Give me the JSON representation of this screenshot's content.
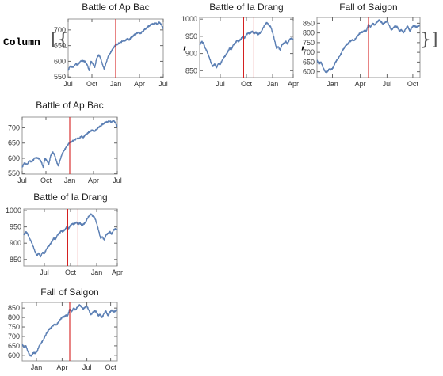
{
  "expression": {
    "head": "Column",
    "open_brackets": "[{",
    "comma": ",",
    "close_brackets": "}]"
  },
  "colors": {
    "series": "#5b7fb4",
    "marker": "#d42020",
    "frame": "#999999",
    "text": "#222222"
  },
  "chart_data": [
    {
      "type": "line",
      "title": "Battle of Ap Bac",
      "x_ticks": [
        "Jul",
        "Oct",
        "Jan",
        "Apr",
        "Jul"
      ],
      "x_tick_pos": [
        0.0,
        0.25,
        0.5,
        0.75,
        1.0
      ],
      "y_ticks": [
        550,
        600,
        650,
        700
      ],
      "ylim": [
        548,
        735
      ],
      "markers": [
        0.5
      ],
      "x": [
        0.0,
        0.02,
        0.05,
        0.08,
        0.1,
        0.13,
        0.16,
        0.18,
        0.2,
        0.22,
        0.24,
        0.26,
        0.28,
        0.3,
        0.32,
        0.34,
        0.36,
        0.38,
        0.4,
        0.42,
        0.44,
        0.46,
        0.48,
        0.5,
        0.52,
        0.55,
        0.58,
        0.6,
        0.62,
        0.64,
        0.66,
        0.68,
        0.7,
        0.72,
        0.74,
        0.76,
        0.78,
        0.8,
        0.82,
        0.84,
        0.86,
        0.88,
        0.9,
        0.92,
        0.94,
        0.96,
        0.98,
        1.0
      ],
      "y": [
        570,
        585,
        580,
        592,
        588,
        600,
        602,
        598,
        590,
        570,
        600,
        592,
        580,
        610,
        620,
        612,
        590,
        575,
        595,
        615,
        625,
        635,
        645,
        652,
        655,
        660,
        666,
        665,
        672,
        668,
        675,
        680,
        685,
        690,
        692,
        688,
        695,
        700,
        705,
        710,
        715,
        718,
        720,
        722,
        718,
        725,
        716,
        705
      ]
    },
    {
      "type": "line",
      "title": "Battle of Ia Drang",
      "x_ticks": [
        "Jul",
        "Oct",
        "Jan",
        "Apr"
      ],
      "x_tick_pos": [
        0.22,
        0.5,
        0.78,
        1.0
      ],
      "y_ticks": [
        850,
        900,
        950,
        1000
      ],
      "ylim": [
        830,
        1005
      ],
      "markers": [
        0.47,
        0.58
      ],
      "x": [
        0.0,
        0.02,
        0.04,
        0.06,
        0.08,
        0.1,
        0.12,
        0.14,
        0.16,
        0.18,
        0.2,
        0.22,
        0.24,
        0.26,
        0.28,
        0.3,
        0.32,
        0.34,
        0.36,
        0.38,
        0.4,
        0.42,
        0.44,
        0.46,
        0.48,
        0.5,
        0.52,
        0.54,
        0.56,
        0.58,
        0.6,
        0.62,
        0.64,
        0.66,
        0.68,
        0.7,
        0.72,
        0.74,
        0.76,
        0.78,
        0.8,
        0.82,
        0.84,
        0.86,
        0.88,
        0.9,
        0.92,
        0.94,
        0.96,
        0.98,
        1.0
      ],
      "y": [
        925,
        935,
        930,
        915,
        905,
        890,
        875,
        862,
        870,
        858,
        872,
        868,
        880,
        890,
        895,
        905,
        915,
        912,
        925,
        930,
        938,
        935,
        942,
        950,
        945,
        955,
        960,
        958,
        965,
        958,
        962,
        955,
        958,
        965,
        975,
        985,
        990,
        982,
        978,
        960,
        940,
        915,
        920,
        910,
        925,
        930,
        935,
        928,
        940,
        945,
        940
      ]
    },
    {
      "type": "line",
      "title": "Fall of Saigon",
      "x_ticks": [
        "Jan",
        "Apr",
        "Jul",
        "Oct"
      ],
      "x_tick_pos": [
        0.15,
        0.42,
        0.68,
        0.93
      ],
      "y_ticks": [
        600,
        650,
        700,
        750,
        800,
        850
      ],
      "ylim": [
        570,
        880
      ],
      "markers": [
        0.5
      ],
      "x": [
        0.0,
        0.02,
        0.04,
        0.06,
        0.08,
        0.1,
        0.12,
        0.14,
        0.16,
        0.18,
        0.2,
        0.22,
        0.24,
        0.26,
        0.28,
        0.3,
        0.32,
        0.34,
        0.36,
        0.38,
        0.4,
        0.42,
        0.44,
        0.46,
        0.48,
        0.5,
        0.52,
        0.54,
        0.56,
        0.58,
        0.6,
        0.62,
        0.64,
        0.66,
        0.68,
        0.7,
        0.72,
        0.74,
        0.76,
        0.78,
        0.8,
        0.82,
        0.84,
        0.86,
        0.88,
        0.9,
        0.92,
        0.94,
        0.96,
        0.98,
        1.0
      ],
      "y": [
        660,
        640,
        650,
        620,
        600,
        598,
        615,
        610,
        625,
        650,
        665,
        680,
        700,
        720,
        735,
        745,
        755,
        765,
        760,
        775,
        790,
        800,
        805,
        810,
        812,
        845,
        830,
        850,
        840,
        855,
        865,
        860,
        845,
        855,
        860,
        840,
        815,
        825,
        835,
        830,
        810,
        815,
        800,
        820,
        835,
        810,
        825,
        840,
        830,
        835,
        840
      ]
    }
  ]
}
